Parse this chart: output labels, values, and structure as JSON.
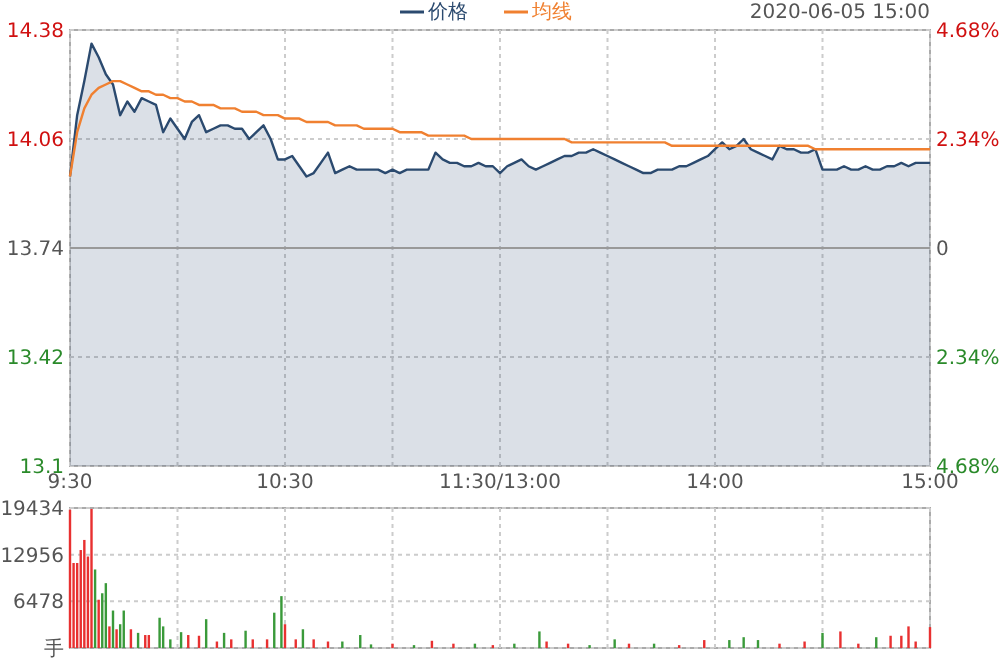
{
  "chart_data": [
    {
      "type": "area",
      "legend": "top",
      "grid": true,
      "annotations": [
        "2020-06-05 15:00"
      ],
      "categories": [
        "9:30",
        null,
        null,
        null,
        null,
        null,
        null,
        null,
        null,
        null,
        null,
        null,
        null,
        null,
        null,
        null,
        null,
        null,
        null,
        null,
        null,
        null,
        null,
        null,
        null,
        null,
        null,
        null,
        null,
        null,
        "10:30",
        null,
        null,
        null,
        null,
        null,
        null,
        null,
        null,
        null,
        null,
        null,
        null,
        null,
        null,
        null,
        null,
        null,
        null,
        null,
        null,
        null,
        null,
        null,
        null,
        null,
        null,
        null,
        null,
        null,
        "11:30/13:00",
        null,
        null,
        null,
        null,
        null,
        null,
        null,
        null,
        null,
        null,
        null,
        null,
        null,
        null,
        null,
        null,
        null,
        null,
        null,
        null,
        null,
        null,
        null,
        null,
        null,
        null,
        null,
        null,
        null,
        "14:00",
        null,
        null,
        null,
        null,
        null,
        null,
        null,
        null,
        null,
        null,
        null,
        null,
        null,
        null,
        null,
        null,
        null,
        null,
        null,
        null,
        null,
        null,
        null,
        null,
        null,
        null,
        null,
        null,
        null,
        "15:00"
      ],
      "ylim": [
        13.1,
        14.38
      ],
      "yticks": [
        13.1,
        13.42,
        13.74,
        14.06,
        14.38
      ],
      "y2lim": [
        -4.68,
        4.68
      ],
      "y2ticks": [
        {
          "value": -4.68,
          "label": "4.68%"
        },
        {
          "value": -2.34,
          "label": "2.34%"
        },
        0,
        {
          "value": 2.34,
          "label": "2.34%"
        },
        {
          "value": 4.68,
          "label": "4.68%"
        }
      ],
      "ref_lines": [
        {
          "axis": "y",
          "value": 13.74,
          "color": "#999999"
        }
      ],
      "series": [
        {
          "name": "价格",
          "color": "#2b4a6f",
          "values": [
            13.95,
            14.13,
            14.23,
            14.34,
            14.3,
            14.25,
            14.22,
            14.13,
            14.17,
            14.14,
            14.18,
            14.17,
            14.16,
            14.08,
            14.12,
            14.09,
            14.06,
            14.11,
            14.13,
            14.08,
            14.09,
            14.1,
            14.1,
            14.09,
            14.09,
            14.06,
            14.08,
            14.1,
            14.06,
            14.0,
            14.0,
            14.01,
            13.98,
            13.95,
            13.96,
            13.99,
            14.02,
            13.96,
            13.97,
            13.98,
            13.97,
            13.97,
            13.97,
            13.97,
            13.96,
            13.97,
            13.96,
            13.97,
            13.97,
            13.97,
            13.97,
            14.02,
            14.0,
            13.99,
            13.99,
            13.98,
            13.98,
            13.99,
            13.98,
            13.98,
            13.96,
            13.98,
            13.99,
            14.0,
            13.98,
            13.97,
            13.98,
            13.99,
            14.0,
            14.01,
            14.01,
            14.02,
            14.02,
            14.03,
            14.02,
            14.01,
            14.0,
            13.99,
            13.98,
            13.97,
            13.96,
            13.96,
            13.97,
            13.97,
            13.97,
            13.98,
            13.98,
            13.99,
            14.0,
            14.01,
            14.03,
            14.05,
            14.03,
            14.04,
            14.06,
            14.03,
            14.02,
            14.01,
            14.0,
            14.04,
            14.03,
            14.03,
            14.02,
            14.02,
            14.03,
            13.97,
            13.97,
            13.97,
            13.98,
            13.97,
            13.97,
            13.98,
            13.97,
            13.97,
            13.98,
            13.98,
            13.99,
            13.98,
            13.99,
            13.99,
            13.99
          ]
        },
        {
          "name": "均线",
          "type": "line",
          "color": "#f08030",
          "values": [
            13.95,
            14.08,
            14.15,
            14.19,
            14.21,
            14.22,
            14.23,
            14.23,
            14.22,
            14.21,
            14.2,
            14.2,
            14.19,
            14.19,
            14.18,
            14.18,
            14.17,
            14.17,
            14.16,
            14.16,
            14.16,
            14.15,
            14.15,
            14.15,
            14.14,
            14.14,
            14.14,
            14.13,
            14.13,
            14.13,
            14.12,
            14.12,
            14.12,
            14.11,
            14.11,
            14.11,
            14.11,
            14.1,
            14.1,
            14.1,
            14.1,
            14.09,
            14.09,
            14.09,
            14.09,
            14.09,
            14.08,
            14.08,
            14.08,
            14.08,
            14.07,
            14.07,
            14.07,
            14.07,
            14.07,
            14.07,
            14.06,
            14.06,
            14.06,
            14.06,
            14.06,
            14.06,
            14.06,
            14.06,
            14.06,
            14.06,
            14.06,
            14.06,
            14.06,
            14.06,
            14.05,
            14.05,
            14.05,
            14.05,
            14.05,
            14.05,
            14.05,
            14.05,
            14.05,
            14.05,
            14.05,
            14.05,
            14.05,
            14.05,
            14.04,
            14.04,
            14.04,
            14.04,
            14.04,
            14.04,
            14.04,
            14.04,
            14.04,
            14.04,
            14.04,
            14.04,
            14.04,
            14.04,
            14.04,
            14.04,
            14.04,
            14.04,
            14.04,
            14.04,
            14.03,
            14.03,
            14.03,
            14.03,
            14.03,
            14.03,
            14.03,
            14.03,
            14.03,
            14.03,
            14.03,
            14.03,
            14.03,
            14.03,
            14.03,
            14.03,
            14.03
          ]
        }
      ]
    },
    {
      "type": "bar",
      "grid": true,
      "categories": [
        null,
        null,
        null,
        null,
        null,
        null,
        null,
        null,
        null,
        null,
        null,
        null,
        null,
        null,
        null,
        null,
        null,
        null,
        null,
        null,
        null,
        null,
        null,
        null,
        null,
        null,
        null,
        null,
        null,
        null,
        null,
        null,
        null,
        null,
        null,
        null,
        null,
        null,
        null,
        null,
        null,
        null,
        null,
        null,
        null,
        null,
        null,
        null,
        null,
        null,
        null,
        null,
        null,
        null,
        null,
        null,
        null,
        null,
        null,
        null,
        null,
        null,
        null,
        null,
        null,
        null,
        null,
        null,
        null,
        null,
        null,
        null,
        null,
        null,
        null,
        null,
        null,
        null,
        null,
        null,
        null,
        null,
        null,
        null,
        null,
        null,
        null,
        null,
        null,
        null,
        null,
        null,
        null,
        null,
        null,
        null,
        null,
        null,
        null,
        null,
        null,
        null,
        null,
        null,
        null,
        null,
        null,
        null,
        null,
        null,
        null,
        null,
        null,
        null,
        null,
        null,
        null,
        null,
        null,
        null,
        null,
        null,
        null,
        null,
        null,
        null,
        null,
        null,
        null,
        null,
        null,
        null,
        null,
        null,
        null,
        null,
        null,
        null,
        null,
        null,
        null,
        null,
        null,
        null,
        null,
        null,
        null,
        null,
        null,
        null,
        null,
        null,
        null,
        null,
        null,
        null,
        null,
        null,
        null,
        null,
        null,
        null,
        null,
        null,
        null,
        null,
        null,
        null,
        null,
        null,
        null,
        null,
        null,
        null,
        null,
        null,
        null,
        null,
        null,
        null,
        null,
        null,
        null,
        null,
        null,
        null,
        null,
        null,
        null,
        null,
        null,
        null,
        null,
        null,
        null,
        null,
        null,
        null,
        null,
        null,
        null,
        null,
        null,
        null,
        null,
        null,
        null,
        null,
        null,
        null,
        null,
        null,
        null,
        null,
        null,
        null,
        null,
        null,
        null,
        null,
        null,
        null,
        null,
        null,
        null,
        null,
        null,
        null,
        null,
        null,
        null,
        null,
        null,
        null,
        null,
        null,
        null,
        null,
        null,
        null,
        null
      ],
      "ylim": [
        0,
        19434
      ],
      "yticks": [
        {
          "value": 0,
          "label": "手"
        },
        6478,
        12956,
        19434
      ],
      "values": [
        19200,
        11800,
        11800,
        13600,
        15000,
        12700,
        19300,
        10900,
        6700,
        7600,
        9000,
        3000,
        5200,
        2600,
        3300,
        5200,
        null,
        2600,
        null,
        2100,
        null,
        1800,
        1800,
        null,
        null,
        4200,
        3000,
        null,
        1200,
        null,
        null,
        2200,
        null,
        1800,
        null,
        null,
        1700,
        null,
        4000,
        null,
        null,
        900,
        null,
        2100,
        null,
        1200,
        null,
        null,
        null,
        2400,
        null,
        1200,
        null,
        null,
        null,
        1200,
        null,
        4900,
        null,
        7200,
        3300,
        null,
        null,
        1200,
        null,
        2600,
        null,
        null,
        1200,
        null,
        null,
        null,
        900,
        null,
        null,
        null,
        900,
        null,
        null,
        null,
        null,
        1800,
        null,
        null,
        500,
        null,
        null,
        null,
        null,
        null,
        600,
        null,
        null,
        null,
        null,
        null,
        400,
        null,
        null,
        null,
        null,
        1000,
        null,
        null,
        null,
        null,
        null,
        600,
        null,
        null,
        null,
        null,
        null,
        600,
        null,
        null,
        null,
        null,
        400,
        null,
        null,
        null,
        null,
        null,
        600,
        null,
        null,
        null,
        null,
        null,
        null,
        2300,
        null,
        900,
        null,
        null,
        null,
        null,
        null,
        600,
        null,
        null,
        null,
        null,
        null,
        400,
        null,
        null,
        null,
        null,
        null,
        null,
        1200,
        null,
        null,
        null,
        600,
        null,
        null,
        null,
        null,
        null,
        null,
        600,
        null,
        null,
        null,
        null,
        null,
        null,
        400,
        null,
        null,
        null,
        null,
        null,
        null,
        1100,
        null,
        null,
        null,
        null,
        null,
        null,
        1100,
        null,
        null,
        null,
        1500,
        null,
        null,
        null,
        1100,
        null,
        null,
        null,
        null,
        null,
        600,
        null,
        null,
        null,
        null,
        null,
        null,
        900,
        null,
        null,
        null,
        null,
        2100,
        null,
        null,
        null,
        null,
        2300,
        null,
        null,
        null,
        null,
        600,
        null,
        null,
        null,
        null,
        1500,
        null,
        null,
        null,
        1700,
        null,
        null,
        1700,
        null,
        3000,
        null,
        900,
        null,
        null,
        null,
        2900
      ],
      "colors": [
        "#e83030",
        "#e83030",
        "#e83030",
        "#e83030",
        "#e83030",
        "#e83030",
        "#e83030",
        "#3a9a3a",
        "#e83030",
        "#3a9a3a",
        "#3a9a3a",
        "#e83030",
        "#3a9a3a",
        "#e83030",
        "#3a9a3a",
        "#3a9a3a",
        null,
        "#e83030",
        null,
        "#3a9a3a",
        null,
        "#e83030",
        "#e83030",
        null,
        null,
        "#3a9a3a",
        "#3a9a3a",
        null,
        "#3a9a3a",
        null,
        null,
        "#3a9a3a",
        null,
        "#e83030",
        null,
        null,
        "#e83030",
        null,
        "#3a9a3a",
        null,
        null,
        "#e83030",
        null,
        "#3a9a3a",
        null,
        "#e83030",
        null,
        null,
        null,
        "#3a9a3a",
        null,
        "#e83030",
        null,
        null,
        null,
        "#e83030",
        null,
        "#3a9a3a",
        null,
        "#3a9a3a",
        "#e83030",
        null,
        null,
        "#e83030",
        null,
        "#3a9a3a",
        null,
        null,
        "#e83030",
        null,
        null,
        null,
        "#e83030",
        null,
        null,
        null,
        "#3a9a3a",
        null,
        null,
        null,
        null,
        "#3a9a3a",
        null,
        null,
        "#3a9a3a",
        null,
        null,
        null,
        null,
        null,
        "#e83030",
        null,
        null,
        null,
        null,
        null,
        "#3a9a3a",
        null,
        null,
        null,
        null,
        "#e83030",
        null,
        null,
        null,
        null,
        null,
        "#e83030",
        null,
        null,
        null,
        null,
        null,
        "#3a9a3a",
        null,
        null,
        null,
        null,
        "#e83030",
        null,
        null,
        null,
        null,
        null,
        "#3a9a3a",
        null,
        null,
        null,
        null,
        null,
        null,
        "#3a9a3a",
        null,
        "#e83030",
        null,
        null,
        null,
        null,
        null,
        "#e83030",
        null,
        null,
        null,
        null,
        null,
        "#3a9a3a",
        null,
        null,
        null,
        null,
        null,
        null,
        "#3a9a3a",
        null,
        null,
        null,
        "#e83030",
        null,
        null,
        null,
        null,
        null,
        null,
        "#3a9a3a",
        null,
        null,
        null,
        null,
        null,
        null,
        "#e83030",
        null,
        null,
        null,
        null,
        null,
        null,
        "#e83030",
        null,
        null,
        null,
        null,
        null,
        null,
        "#3a9a3a",
        null,
        null,
        null,
        "#3a9a3a",
        null,
        null,
        null,
        "#3a9a3a",
        null,
        null,
        null,
        null,
        null,
        "#e83030",
        null,
        null,
        null,
        null,
        null,
        null,
        "#e83030",
        null,
        null,
        null,
        null,
        "#3a9a3a",
        null,
        null,
        null,
        null,
        "#e83030",
        null,
        null,
        null,
        null,
        "#e83030",
        null,
        null,
        null,
        null,
        "#3a9a3a",
        null,
        null,
        null,
        "#e83030",
        null,
        null,
        "#e83030",
        null,
        "#e83030",
        null,
        "#e83030",
        null,
        null,
        null,
        "#e83030"
      ]
    }
  ]
}
